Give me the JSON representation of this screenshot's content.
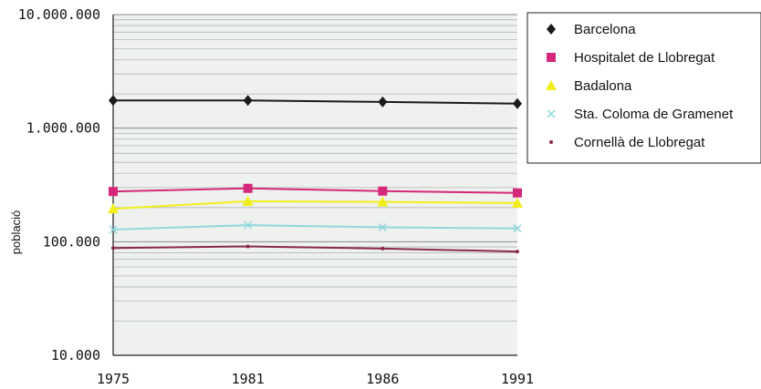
{
  "chart_data": {
    "type": "line",
    "title": "",
    "xlabel": "",
    "ylabel": "població",
    "y_scale": "log",
    "ylim": [
      10000,
      10000000
    ],
    "y_ticks": [
      10000,
      100000,
      1000000,
      10000000
    ],
    "y_tick_labels": [
      "10.000",
      "100.000",
      "1.000.000",
      "10.000.000"
    ],
    "categories": [
      "1975",
      "1981",
      "1986",
      "1991"
    ],
    "grid": true,
    "legend_position": "top-right",
    "series": [
      {
        "name": "Barcelona",
        "color": "#1a1a1a",
        "marker": "diamond",
        "values": [
          1752000,
          1753000,
          1701000,
          1643000
        ]
      },
      {
        "name": "Hospitalet de Llobregat",
        "color": "#d6287a",
        "marker": "square",
        "values": [
          277000,
          295000,
          279000,
          269000
        ]
      },
      {
        "name": "Badalona",
        "color": "#f2ee1a",
        "marker": "triangle",
        "values": [
          195000,
          227000,
          224000,
          219000
        ]
      },
      {
        "name": "Sta. Coloma de Gramenet",
        "color": "#8fd6dc",
        "marker": "x",
        "values": [
          128000,
          140000,
          134000,
          131000
        ]
      },
      {
        "name": "Cornellà de Llobregat",
        "color": "#8a2a4a",
        "marker": "dot",
        "values": [
          88000,
          91000,
          87000,
          82000
        ]
      }
    ]
  }
}
